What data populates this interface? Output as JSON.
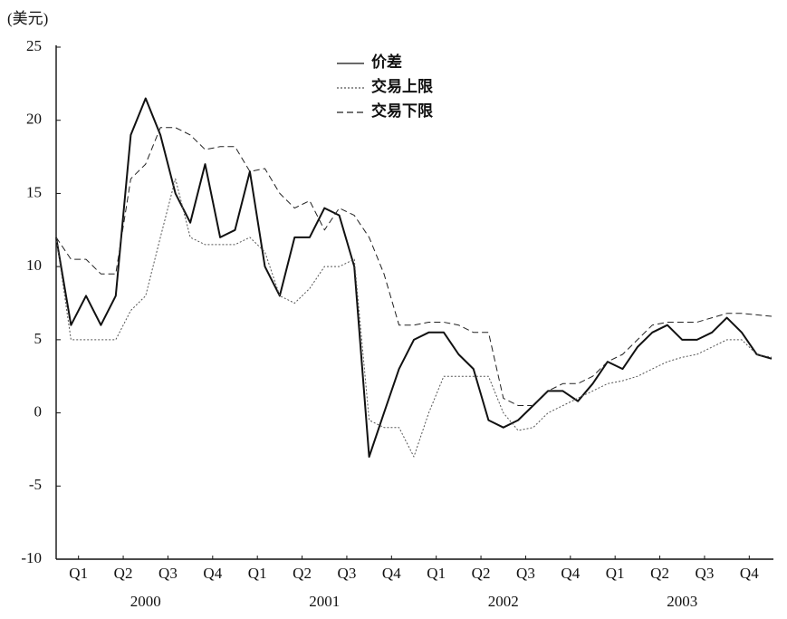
{
  "chart_data": {
    "type": "line",
    "y_label": "(美元)",
    "xlim": [
      2000,
      2004
    ],
    "xticks": [
      {
        "value": 2000.125,
        "label": "Q1"
      },
      {
        "value": 2000.375,
        "label": "Q2"
      },
      {
        "value": 2000.625,
        "label": "Q3"
      },
      {
        "value": 2000.875,
        "label": "Q4"
      },
      {
        "value": 2001.125,
        "label": "Q1"
      },
      {
        "value": 2001.375,
        "label": "Q2"
      },
      {
        "value": 2001.625,
        "label": "Q3"
      },
      {
        "value": 2001.875,
        "label": "Q4"
      },
      {
        "value": 2002.125,
        "label": "Q1"
      },
      {
        "value": 2002.375,
        "label": "Q2"
      },
      {
        "value": 2002.625,
        "label": "Q3"
      },
      {
        "value": 2002.875,
        "label": "Q4"
      },
      {
        "value": 2003.125,
        "label": "Q1"
      },
      {
        "value": 2003.375,
        "label": "Q2"
      },
      {
        "value": 2003.625,
        "label": "Q3"
      },
      {
        "value": 2003.875,
        "label": "Q4"
      }
    ],
    "year_labels": [
      {
        "value": 2000.5,
        "label": "2000"
      },
      {
        "value": 2001.5,
        "label": "2001"
      },
      {
        "value": 2002.5,
        "label": "2002"
      },
      {
        "value": 2003.5,
        "label": "2003"
      }
    ],
    "ylim": [
      -10,
      25
    ],
    "yticks": [
      -10,
      -5,
      0,
      5,
      10,
      15,
      20,
      25
    ],
    "x": [
      2000,
      2000.083,
      2000.167,
      2000.25,
      2000.333,
      2000.417,
      2000.5,
      2000.583,
      2000.667,
      2000.75,
      2000.833,
      2000.917,
      2001,
      2001.083,
      2001.167,
      2001.25,
      2001.333,
      2001.417,
      2001.5,
      2001.583,
      2001.667,
      2001.75,
      2001.833,
      2001.917,
      2002,
      2002.083,
      2002.167,
      2002.25,
      2002.333,
      2002.417,
      2002.5,
      2002.583,
      2002.667,
      2002.75,
      2002.833,
      2002.917,
      2003,
      2003.083,
      2003.167,
      2003.25,
      2003.333,
      2003.417,
      2003.5,
      2003.583,
      2003.667,
      2003.75,
      2003.833,
      2003.917,
      2004
    ],
    "legend": "top-center",
    "series": [
      {
        "name": "价差",
        "color": "#111111",
        "style": "solid",
        "width": 2,
        "values": [
          12,
          6,
          8,
          6,
          8,
          19,
          21.5,
          19,
          15,
          13,
          17,
          12,
          12.5,
          16.5,
          10,
          8,
          12,
          12,
          14,
          13.5,
          10,
          -3,
          0,
          3,
          5,
          5.5,
          5.5,
          4,
          3,
          -0.5,
          -1,
          -0.5,
          0.5,
          1.5,
          1.5,
          0.8,
          2,
          3.5,
          3,
          4.5,
          5.5,
          6,
          5,
          5,
          5.5,
          6.5,
          5.5,
          4,
          3.7
        ]
      },
      {
        "name": "交易上限",
        "color": "#555555",
        "style": "dotted",
        "width": 1,
        "values": [
          12,
          5,
          5,
          5,
          5,
          7,
          8,
          12,
          16,
          12,
          11.5,
          11.5,
          11.5,
          12,
          11,
          8,
          7.5,
          8.5,
          10,
          10,
          10.5,
          -0.5,
          -1,
          -1,
          -3,
          0,
          2.5,
          2.5,
          2.5,
          2.5,
          0,
          -1.2,
          -1,
          0,
          0.5,
          1,
          1.5,
          2,
          2.2,
          2.5,
          3,
          3.5,
          3.8,
          4,
          4.5,
          5,
          5,
          4,
          3.8
        ]
      },
      {
        "name": "交易下限",
        "color": "#222222",
        "style": "dashed",
        "width": 1,
        "values": [
          12,
          10.5,
          10.5,
          9.5,
          9.5,
          16,
          17,
          19.5,
          19.5,
          19,
          18,
          18.2,
          18.2,
          16.5,
          16.7,
          15,
          14,
          14.5,
          12.5,
          14,
          13.5,
          12,
          9.5,
          6,
          6,
          6.2,
          6.2,
          6,
          5.5,
          5.5,
          1,
          0.5,
          0.5,
          1.5,
          2,
          2,
          2.5,
          3.5,
          4,
          5,
          6,
          6.2,
          6.2,
          6.2,
          6.5,
          6.8,
          6.8,
          6.7,
          6.6
        ]
      }
    ]
  }
}
